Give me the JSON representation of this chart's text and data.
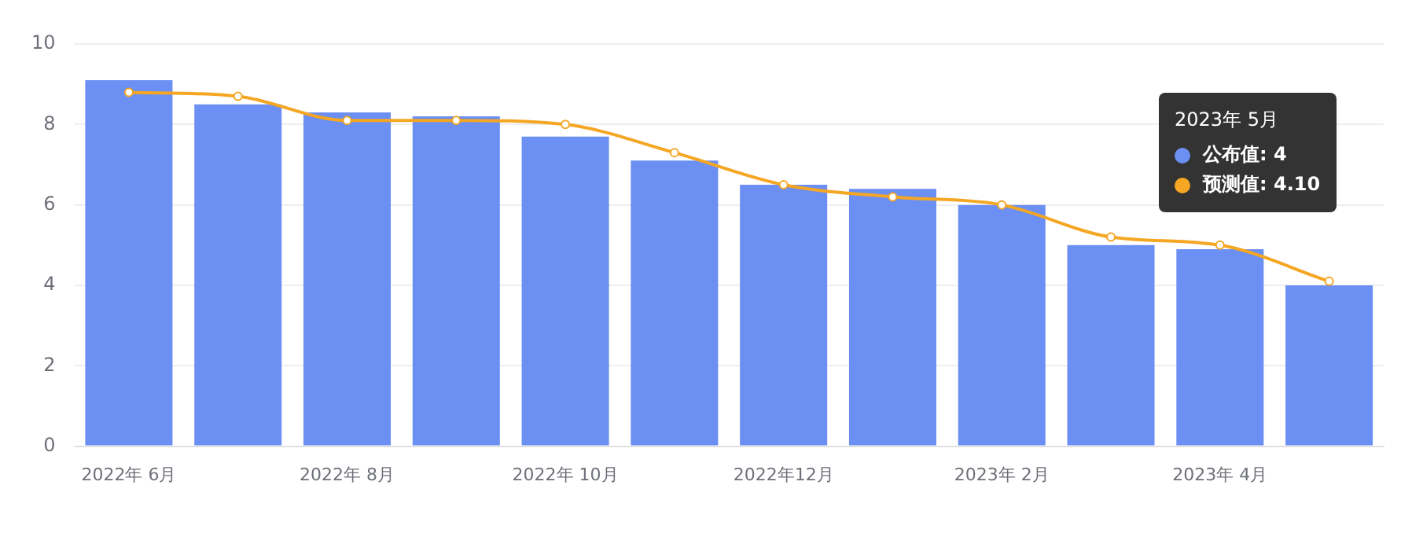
{
  "chart_data": {
    "type": "bar",
    "categories": [
      "2022年 6月",
      null,
      "2022年 8月",
      null,
      "2022年 10月",
      null,
      "2022年12月",
      null,
      "2023年 2月",
      null,
      "2023年 4月",
      null
    ],
    "series": [
      {
        "color": "#6b8ff2",
        "values": [
          9.1,
          8.5,
          8.3,
          8.2,
          7.7,
          7.1,
          6.5,
          6.4,
          6.0,
          5.0,
          4.9,
          4.0
        ]
      },
      {
        "type": "line",
        "color": "#f5a623",
        "values": [
          8.8,
          8.7,
          8.1,
          8.1,
          8.0,
          7.3,
          6.5,
          6.2,
          6.0,
          5.2,
          5.0,
          4.1
        ]
      }
    ],
    "annotations": [
      "2023年 5月",
      "公布值: 4",
      "预测值: 4.10"
    ],
    "ylim": [
      0,
      10
    ],
    "yticks": [
      0,
      2,
      4,
      6,
      8,
      10
    ],
    "grid": "y",
    "marker": "circle"
  }
}
